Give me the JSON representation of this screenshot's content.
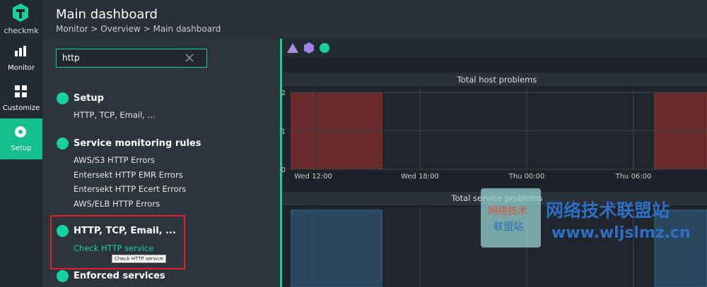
{
  "nav": {
    "logo": "checkmk",
    "items": [
      "Monitor",
      "Customize",
      "Setup"
    ]
  },
  "header": {
    "title": "Main dashboard",
    "breadcrumb": "Monitor > Overview > Main dashboard"
  },
  "search": {
    "query": "http",
    "sections": [
      {
        "title": "Setup",
        "items": [
          "HTTP, TCP, Email, ..."
        ]
      },
      {
        "title": "Service monitoring rules",
        "items": [
          "AWS/S3 HTTP Errors",
          "Entersekt HTTP EMR Errors",
          "Entersekt HTTP Ecert Errors",
          "AWS/ELB HTTP Errors"
        ]
      },
      {
        "title": "HTTP, TCP, Email, ...",
        "items": [
          "Check HTTP service"
        ]
      },
      {
        "title": "Enforced services",
        "items": []
      }
    ],
    "tooltip": "Check HTTP service"
  },
  "dashboard": {
    "host_problems": {
      "title": "Total host problems",
      "ylim": [
        0,
        2
      ],
      "yticks": [
        0,
        1,
        2
      ],
      "xticks": [
        "Wed 12:00",
        "Wed 18:00",
        "Thu 00:00",
        "Thu 06:00"
      ],
      "values": [
        2,
        2
      ],
      "color": "#6a2a2c"
    },
    "service_problems": {
      "title": "Total service problems"
    }
  },
  "watermark": {
    "badge": [
      "网络技术",
      "联盟站"
    ],
    "name": "网络技术联盟站",
    "url": "www.wljslmz.cn"
  }
}
